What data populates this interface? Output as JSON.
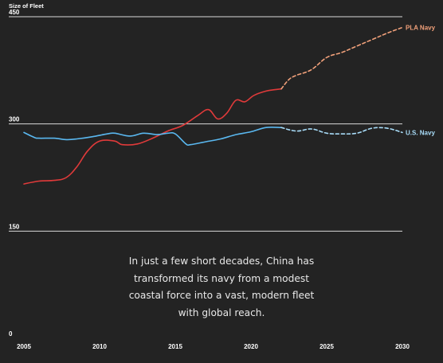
{
  "caption": "In just a few short decades, China has transformed its navy from a modest coastal force into a vast, modern fleet with global reach.",
  "colors": {
    "background": "#232323",
    "pla": "#e03a3a",
    "pla_projected": "#f0a07a",
    "pla_label": "#f0a07a",
    "us": "#5ab8f0",
    "us_projected": "#a8dcf8",
    "gridline": "#d8d8d8"
  },
  "chart_data": {
    "type": "line",
    "title": "",
    "xlabel": "",
    "ylabel": "Size of Fleet",
    "xlim": [
      2005,
      2030
    ],
    "ylim": [
      0,
      450
    ],
    "yticks": [
      0,
      150,
      300,
      450
    ],
    "xticks": [
      2005,
      2010,
      2015,
      2020,
      2025,
      2030
    ],
    "grid": "horizontal at 150, 300, 450",
    "legend": "direct labels at line ends",
    "series": [
      {
        "name": "PLA Navy",
        "segments": [
          {
            "style": "actual",
            "x": [
              2005,
              2006,
              2007,
              2007.8,
              2008.5,
              2009.2,
              2010,
              2011,
              2011.5,
              2012.5,
              2013.5,
              2014.5,
              2015.5,
              2016.5,
              2017.2,
              2017.8,
              2018.4,
              2019,
              2019.6,
              2020.2,
              2021,
              2021.6,
              2022
            ],
            "y": [
              216,
              220,
              221,
              225,
              240,
              262,
              276,
              276,
              271,
              272,
              280,
              290,
              298,
              312,
              320,
              307,
              315,
              333,
              331,
              340,
              346,
              348,
              349
            ]
          },
          {
            "style": "projected",
            "x": [
              2022,
              2022.5,
              2023,
              2024,
              2025,
              2026,
              2027,
              2028,
              2029,
              2030
            ],
            "y": [
              349,
              362,
              368,
              376,
              393,
              400,
              409,
              418,
              427,
              435
            ]
          }
        ]
      },
      {
        "name": "U.S. Navy",
        "segments": [
          {
            "style": "actual",
            "x": [
              2005,
              2005.7,
              2006,
              2007,
              2007.8,
              2008.5,
              2009.5,
              2010.5,
              2011,
              2012,
              2012.9,
              2013.8,
              2014.5,
              2015,
              2015.7,
              2016,
              2017,
              2018,
              2019,
              2020,
              2021,
              2022
            ],
            "y": [
              288,
              281,
              280,
              280,
              278,
              279,
              282,
              286,
              287,
              283,
              287,
              285,
              287,
              286,
              272,
              271,
              275,
              279,
              285,
              289,
              295,
              295
            ]
          },
          {
            "style": "projected",
            "x": [
              2022,
              2023,
              2024,
              2025,
              2026,
              2027,
              2028,
              2029,
              2030
            ],
            "y": [
              295,
              290,
              293,
              287,
              286,
              287,
              294,
              294,
              288
            ]
          }
        ]
      }
    ]
  }
}
